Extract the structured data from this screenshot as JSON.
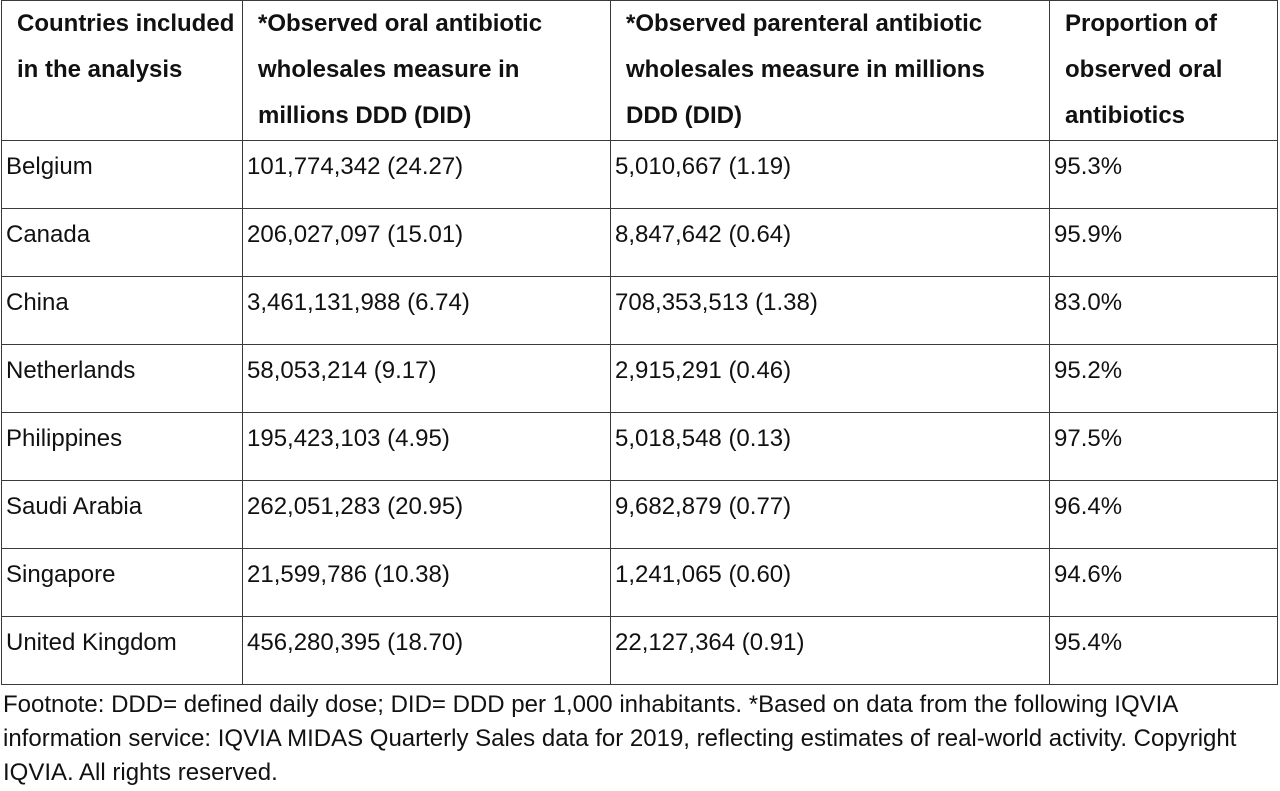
{
  "table": {
    "headers": [
      "Countries included in the analysis",
      "*Observed oral antibiotic wholesales measure in millions DDD (DID)",
      "*Observed parenteral antibiotic wholesales measure in millions DDD (DID)",
      "Proportion of observed oral antibiotics"
    ],
    "rows": [
      [
        "Belgium",
        "101,774,342 (24.27)",
        "5,010,667 (1.19)",
        "95.3%"
      ],
      [
        "Canada",
        "206,027,097 (15.01)",
        "8,847,642 (0.64)",
        "95.9%"
      ],
      [
        "China",
        "3,461,131,988 (6.74)",
        "708,353,513 (1.38)",
        "83.0%"
      ],
      [
        "Netherlands",
        "58,053,214 (9.17)",
        "2,915,291 (0.46)",
        "95.2%"
      ],
      [
        "Philippines",
        "195,423,103 (4.95)",
        "5,018,548 (0.13)",
        "97.5%"
      ],
      [
        "Saudi Arabia",
        "262,051,283 (20.95)",
        "9,682,879 (0.77)",
        "96.4%"
      ],
      [
        "Singapore",
        "21,599,786 (10.38)",
        "1,241,065 (0.60)",
        "94.6%"
      ],
      [
        "United Kingdom",
        "456,280,395 (18.70)",
        "22,127,364 (0.91)",
        "95.4%"
      ]
    ]
  },
  "footnote": "Footnote: DDD= defined daily dose; DID= DDD per 1,000 inhabitants. *Based on data from the following IQVIA information service: IQVIA MIDAS Quarterly Sales data for 2019, reflecting estimates of real-world activity. Copyright IQVIA. All rights reserved."
}
